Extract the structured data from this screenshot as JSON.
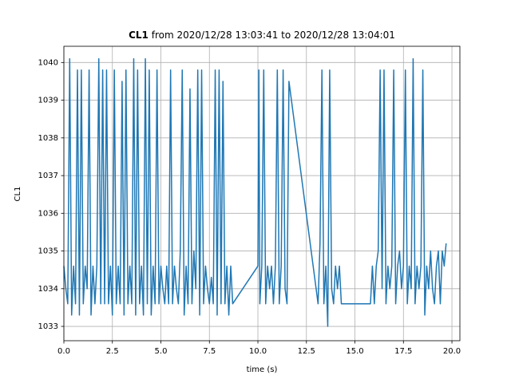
{
  "chart_data": {
    "type": "line",
    "title_bold": "CL1",
    "title": "from 2020/12/28 13:03:41 to 2020/12/28 13:04:01",
    "xlabel": "time (s)",
    "ylabel": "CL1",
    "xlim": [
      0,
      20.41
    ],
    "ylim": [
      1032.62,
      1040.43
    ],
    "xticks": [
      {
        "value": 0,
        "label": "0.0"
      },
      2.5,
      {
        "value": 5,
        "label": "5.0"
      },
      7.5,
      {
        "value": 10,
        "label": "10.0"
      },
      12.5,
      {
        "value": 15,
        "label": "15.0"
      },
      17.5,
      {
        "value": 20,
        "label": "20.0"
      }
    ],
    "yticks": [
      1033,
      1034,
      1035,
      1036,
      1037,
      1038,
      1039,
      1040
    ],
    "grid": true,
    "color": "#1f77b4",
    "x": [
      0.0,
      0.1,
      0.2,
      0.3,
      0.4,
      0.5,
      0.6,
      0.7,
      0.8,
      0.9,
      1.0,
      1.1,
      1.2,
      1.3,
      1.4,
      1.5,
      1.6,
      1.7,
      1.8,
      1.9,
      2.0,
      2.1,
      2.2,
      2.3,
      2.4,
      2.5,
      2.6,
      2.7,
      2.8,
      2.9,
      3.0,
      3.1,
      3.2,
      3.3,
      3.4,
      3.5,
      3.6,
      3.7,
      3.8,
      3.9,
      4.0,
      4.1,
      4.2,
      4.3,
      4.4,
      4.5,
      4.6,
      4.7,
      4.8,
      4.9,
      5.0,
      5.1,
      5.2,
      5.3,
      5.4,
      5.5,
      5.6,
      5.7,
      5.8,
      5.9,
      6.0,
      6.1,
      6.2,
      6.3,
      6.4,
      6.5,
      6.6,
      6.7,
      6.8,
      6.9,
      7.0,
      7.1,
      7.2,
      7.3,
      7.4,
      7.5,
      7.6,
      7.7,
      7.8,
      7.9,
      8.0,
      8.1,
      8.2,
      8.3,
      8.4,
      8.5,
      8.6,
      8.7,
      10.0,
      10.05,
      10.1,
      10.2,
      10.3,
      10.4,
      10.5,
      10.6,
      10.7,
      10.8,
      10.9,
      11.0,
      11.1,
      11.2,
      11.3,
      11.4,
      11.5,
      11.6,
      13.0,
      13.1,
      13.2,
      13.3,
      13.4,
      13.5,
      13.6,
      13.7,
      13.8,
      13.9,
      14.0,
      14.1,
      14.2,
      14.3,
      15.8,
      15.9,
      16.0,
      16.1,
      16.2,
      16.3,
      16.4,
      16.5,
      16.6,
      16.7,
      16.8,
      16.9,
      17.0,
      17.1,
      17.2,
      17.3,
      17.4,
      17.5,
      17.6,
      17.7,
      17.8,
      17.9,
      18.0,
      18.1,
      18.2,
      18.3,
      18.4,
      18.5,
      18.6,
      18.7,
      18.8,
      18.9,
      19.0,
      19.1,
      19.2,
      19.3,
      19.4,
      19.5,
      19.6,
      19.7
    ],
    "values": [
      1034.6,
      1034.0,
      1033.6,
      1040.1,
      1033.3,
      1034.6,
      1033.6,
      1039.8,
      1033.3,
      1039.8,
      1033.6,
      1034.6,
      1034.0,
      1039.8,
      1033.3,
      1034.6,
      1033.6,
      1034.6,
      1040.1,
      1033.6,
      1039.8,
      1033.6,
      1039.8,
      1033.6,
      1034.6,
      1033.3,
      1039.8,
      1033.6,
      1034.6,
      1033.6,
      1039.5,
      1033.3,
      1039.8,
      1033.6,
      1034.6,
      1033.6,
      1040.1,
      1033.3,
      1039.8,
      1033.6,
      1034.6,
      1033.3,
      1040.1,
      1033.6,
      1039.8,
      1033.3,
      1034.6,
      1033.6,
      1039.8,
      1033.6,
      1034.6,
      1034.0,
      1033.6,
      1034.6,
      1033.6,
      1039.8,
      1033.6,
      1034.6,
      1034.0,
      1033.6,
      1035.0,
      1039.8,
      1033.3,
      1034.6,
      1033.6,
      1039.3,
      1033.6,
      1035.0,
      1034.0,
      1039.8,
      1033.3,
      1039.8,
      1033.6,
      1034.6,
      1034.0,
      1033.6,
      1034.3,
      1033.6,
      1039.8,
      1033.3,
      1039.8,
      1033.6,
      1039.5,
      1033.6,
      1034.6,
      1033.3,
      1034.6,
      1033.6,
      1034.6,
      1039.8,
      1033.6,
      1034.6,
      1039.8,
      1033.6,
      1034.6,
      1034.0,
      1034.6,
      1033.6,
      1034.6,
      1039.8,
      1033.6,
      1034.6,
      1039.8,
      1034.0,
      1033.6,
      1039.5,
      1034.0,
      1033.6,
      1035.2,
      1039.8,
      1033.6,
      1034.6,
      1033.0,
      1039.8,
      1034.0,
      1033.6,
      1034.6,
      1034.0,
      1034.6,
      1033.6,
      1033.6,
      1034.6,
      1033.6,
      1034.6,
      1035.0,
      1039.8,
      1034.0,
      1039.8,
      1033.6,
      1034.6,
      1034.0,
      1034.6,
      1039.8,
      1033.6,
      1034.6,
      1035.0,
      1034.0,
      1034.6,
      1039.8,
      1033.6,
      1034.6,
      1034.0,
      1040.1,
      1033.6,
      1034.6,
      1034.0,
      1034.6,
      1039.8,
      1033.3,
      1034.6,
      1034.0,
      1035.0,
      1034.0,
      1033.6,
      1034.6,
      1035.0,
      1033.6,
      1035.0,
      1034.6,
      1035.2
    ]
  }
}
